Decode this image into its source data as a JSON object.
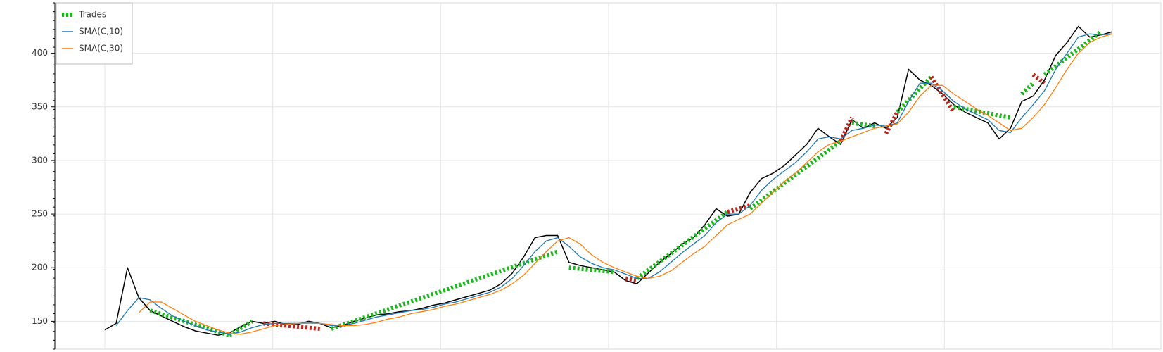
{
  "chart_data": {
    "type": "line",
    "ylim": [
      124,
      447
    ],
    "yticks": [
      150,
      200,
      250,
      300,
      350,
      400
    ],
    "grid": true,
    "legend": "top-left",
    "series": [
      {
        "color": "#000000",
        "values": [
          142,
          148,
          200,
          172,
          160,
          155,
          150,
          145,
          141,
          139,
          137,
          139,
          145,
          150,
          148,
          150,
          147,
          147,
          150,
          148,
          144,
          146,
          150,
          153,
          156,
          157,
          159,
          160,
          162,
          165,
          167,
          170,
          173,
          176,
          179,
          185,
          195,
          210,
          228,
          230,
          230,
          205,
          202,
          200,
          198,
          196,
          188,
          185,
          195,
          205,
          213,
          222,
          228,
          240,
          255,
          248,
          250,
          270,
          283,
          288,
          295,
          305,
          315,
          330,
          322,
          315,
          338,
          330,
          335,
          330,
          340,
          385,
          375,
          370,
          362,
          352,
          345,
          340,
          335,
          320,
          330,
          355,
          360,
          375,
          398,
          410,
          425,
          415,
          417,
          420
        ]
      },
      {
        "name": "SMA(C,10)",
        "color": "#1f77b4",
        "values": [
          null,
          146,
          160,
          172,
          170,
          162,
          155,
          150,
          146,
          142,
          140,
          138,
          140,
          144,
          147,
          148,
          148,
          148,
          149,
          148,
          146,
          146,
          148,
          151,
          154,
          156,
          158,
          160,
          161,
          163,
          166,
          168,
          171,
          174,
          177,
          182,
          190,
          202,
          215,
          225,
          228,
          220,
          210,
          204,
          200,
          198,
          194,
          190,
          190,
          196,
          205,
          214,
          222,
          230,
          242,
          250,
          250,
          258,
          272,
          282,
          290,
          298,
          308,
          320,
          322,
          320,
          328,
          330,
          333,
          332,
          335,
          355,
          372,
          372,
          365,
          355,
          348,
          343,
          338,
          328,
          326,
          340,
          352,
          365,
          385,
          400,
          415,
          418,
          417,
          418
        ]
      },
      {
        "name": "SMA(C,30)",
        "color": "#ff7f0e",
        "values": [
          null,
          null,
          null,
          158,
          168,
          168,
          162,
          156,
          150,
          146,
          142,
          139,
          138,
          140,
          143,
          146,
          147,
          148,
          148,
          148,
          147,
          146,
          146,
          147,
          149,
          152,
          154,
          157,
          159,
          161,
          164,
          166,
          169,
          172,
          175,
          179,
          185,
          193,
          204,
          215,
          225,
          228,
          222,
          212,
          205,
          200,
          196,
          192,
          190,
          192,
          197,
          205,
          213,
          220,
          230,
          240,
          245,
          250,
          260,
          270,
          280,
          288,
          298,
          308,
          315,
          318,
          322,
          326,
          330,
          332,
          334,
          345,
          360,
          370,
          370,
          362,
          355,
          348,
          342,
          335,
          328,
          330,
          340,
          352,
          368,
          385,
          400,
          410,
          415,
          418
        ]
      }
    ],
    "trades": {
      "name": "Trades",
      "color": "#1db81d",
      "segments": [
        {
          "x": [
            4,
            11
          ],
          "y": [
            160,
            137
          ],
          "color": "#1db81d"
        },
        {
          "x": [
            11,
            13
          ],
          "y": [
            137,
            150
          ],
          "color": "#1db81d"
        },
        {
          "x": [
            14,
            19
          ],
          "y": [
            148,
            143
          ],
          "color": "#b8271d"
        },
        {
          "x": [
            20,
            40
          ],
          "y": [
            143,
            215
          ],
          "color": "#1db81d"
        },
        {
          "x": [
            41,
            45
          ],
          "y": [
            200,
            196
          ],
          "color": "#1db81d"
        },
        {
          "x": [
            46,
            47
          ],
          "y": [
            190,
            188
          ],
          "color": "#b8271d"
        },
        {
          "x": [
            47,
            55
          ],
          "y": [
            190,
            252
          ],
          "color": "#1db81d"
        },
        {
          "x": [
            55,
            57
          ],
          "y": [
            252,
            258
          ],
          "color": "#b8271d"
        },
        {
          "x": [
            57,
            65
          ],
          "y": [
            255,
            318
          ],
          "color": "#1db81d"
        },
        {
          "x": [
            65,
            66
          ],
          "y": [
            318,
            340
          ],
          "color": "#b8271d"
        },
        {
          "x": [
            66,
            68
          ],
          "y": [
            335,
            332
          ],
          "color": "#1db81d"
        },
        {
          "x": [
            69,
            70
          ],
          "y": [
            325,
            345
          ],
          "color": "#b8271d"
        },
        {
          "x": [
            70,
            73
          ],
          "y": [
            345,
            378
          ],
          "color": "#1db81d"
        },
        {
          "x": [
            73,
            75
          ],
          "y": [
            378,
            345
          ],
          "color": "#b8271d"
        },
        {
          "x": [
            75,
            80
          ],
          "y": [
            350,
            340
          ],
          "color": "#1db81d"
        },
        {
          "x": [
            81,
            82
          ],
          "y": [
            362,
            372
          ],
          "color": "#1db81d"
        },
        {
          "x": [
            82,
            83
          ],
          "y": [
            380,
            372
          ],
          "color": "#b8271d"
        },
        {
          "x": [
            83,
            88
          ],
          "y": [
            380,
            420
          ],
          "color": "#1db81d"
        }
      ]
    }
  }
}
